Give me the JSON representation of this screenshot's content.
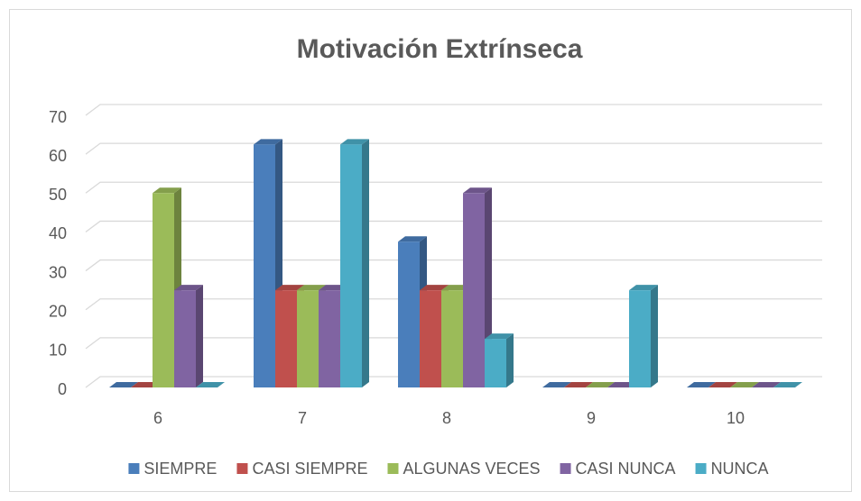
{
  "chart_data": {
    "type": "bar3d",
    "title": "Motivación Extrínseca",
    "categories": [
      "6",
      "7",
      "8",
      "9",
      "10"
    ],
    "series": [
      {
        "name": "SIEMPRE",
        "color": "#4a7ebb",
        "values": [
          0,
          62.5,
          37.5,
          0,
          0
        ]
      },
      {
        "name": "CASI SIEMPRE",
        "color": "#c0504d",
        "values": [
          0,
          25,
          25,
          0,
          0
        ]
      },
      {
        "name": "ALGUNAS VECES",
        "color": "#9bbb59",
        "values": [
          50,
          25,
          25,
          0,
          0
        ]
      },
      {
        "name": "CASI NUNCA",
        "color": "#8064a2",
        "values": [
          25,
          25,
          50,
          0,
          0
        ]
      },
      {
        "name": "NUNCA",
        "color": "#4bacc6",
        "values": [
          0,
          62.5,
          12.5,
          25,
          0
        ]
      }
    ],
    "ylim": [
      0,
      70
    ],
    "yticks": [
      0,
      10,
      20,
      30,
      40,
      50,
      60,
      70
    ],
    "grid": true,
    "legend": "bottom"
  }
}
